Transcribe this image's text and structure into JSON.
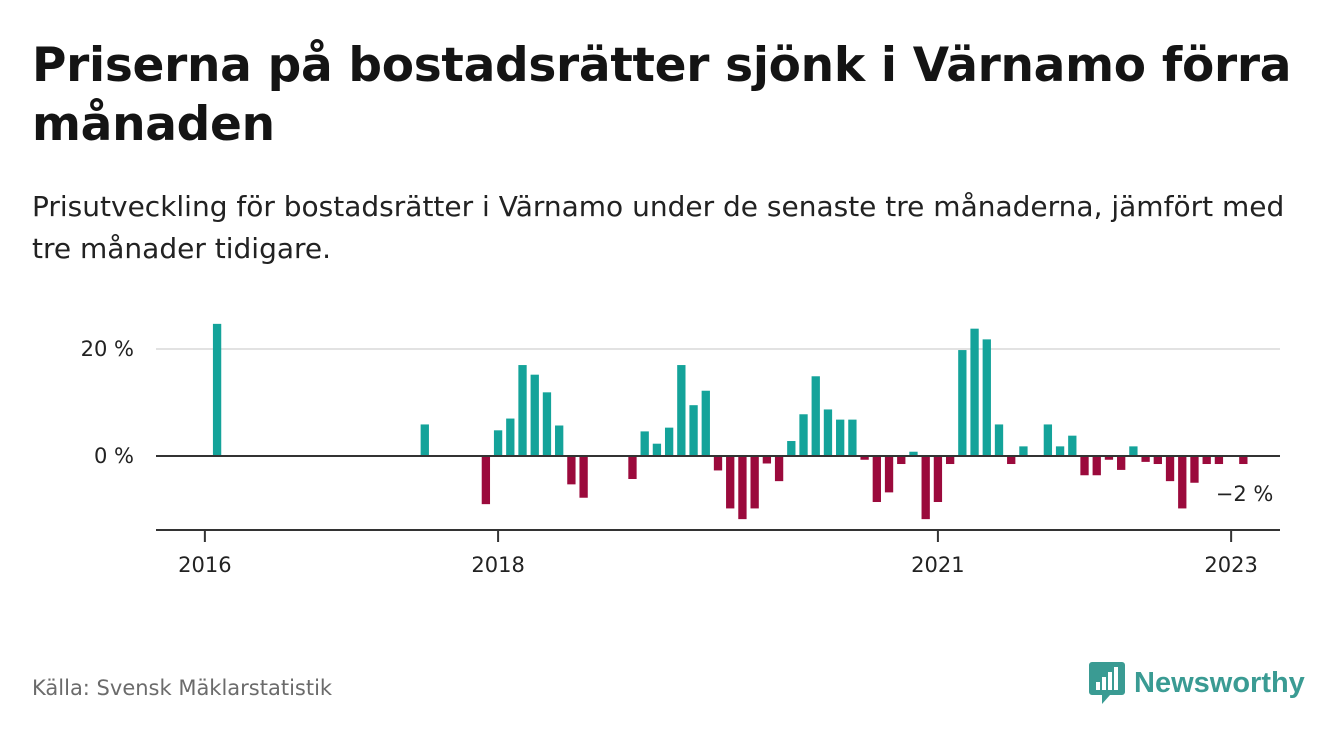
{
  "title": "Priserna på bostadsrätter sjönk i Värnamo förra månaden",
  "subtitle": "Prisutveckling för bostadsrätter i Värnamo under de senaste tre månaderna, jämfört med tre månader tidigare.",
  "source": "Källa: Svensk Mäklarstatistik",
  "brand": {
    "name": "Newsworthy",
    "color": "#3a9b93",
    "icon": "newsworthy-logo-icon"
  },
  "colors": {
    "positive": "#14a39a",
    "negative": "#9b0a3c",
    "grid": "#d9d9d9",
    "axis": "#333333"
  },
  "chart_data": {
    "type": "bar",
    "title": "Priserna på bostadsrätter sjönk i Värnamo förra månaden",
    "xlabel": "",
    "ylabel": "",
    "ylim": [
      -14,
      27
    ],
    "y_ticks": [
      {
        "value": 0,
        "label": "0 %"
      },
      {
        "value": 20,
        "label": "20 %"
      }
    ],
    "x_ticks": [
      {
        "value": "2016-01",
        "label": "2016"
      },
      {
        "value": "2018-01",
        "label": "2018"
      },
      {
        "value": "2021-01",
        "label": "2021"
      },
      {
        "value": "2023-01",
        "label": "2023"
      }
    ],
    "x_range": [
      "2015-09",
      "2023-05"
    ],
    "grid": "horizontal",
    "last_value_label": "−2 %",
    "categories": [
      "2016-02",
      "2017-07",
      "2017-12",
      "2018-01",
      "2018-02",
      "2018-03",
      "2018-04",
      "2018-05",
      "2018-06",
      "2018-07",
      "2018-08",
      "2018-12",
      "2019-01",
      "2019-02",
      "2019-03",
      "2019-04",
      "2019-05",
      "2019-06",
      "2019-07",
      "2019-08",
      "2019-09",
      "2019-10",
      "2019-11",
      "2019-12",
      "2020-01",
      "2020-02",
      "2020-03",
      "2020-04",
      "2020-05",
      "2020-06",
      "2020-07",
      "2020-08",
      "2020-09",
      "2020-10",
      "2020-11",
      "2020-12",
      "2021-01",
      "2021-02",
      "2021-03",
      "2021-04",
      "2021-05",
      "2021-06",
      "2021-07",
      "2021-08",
      "2021-10",
      "2021-11",
      "2021-12",
      "2022-01",
      "2022-02",
      "2022-03",
      "2022-04",
      "2022-05",
      "2022-06",
      "2022-07",
      "2022-08",
      "2022-09",
      "2022-10",
      "2022-11",
      "2022-12",
      "2023-02"
    ],
    "values": [
      24.7,
      5.9,
      -9,
      4.8,
      7,
      17,
      15.2,
      11.9,
      5.7,
      -5.3,
      -7.8,
      -4.3,
      4.6,
      2.3,
      5.3,
      17,
      9.5,
      12.2,
      -2.7,
      -9.8,
      -11.8,
      -9.8,
      -1.4,
      -4.7,
      2.8,
      7.8,
      14.9,
      8.7,
      6.8,
      6.8,
      -0.7,
      -8.6,
      -6.8,
      -1.5,
      0.8,
      -11.8,
      -8.6,
      -1.5,
      19.8,
      23.8,
      21.8,
      5.9,
      -1.5,
      1.8,
      5.9,
      1.8,
      3.8,
      -3.6,
      -3.6,
      -0.7,
      -2.6,
      1.8,
      -1.1,
      -1.5,
      -4.7,
      -9.8,
      -5,
      -1.5,
      -1.5,
      -1.5
    ]
  }
}
